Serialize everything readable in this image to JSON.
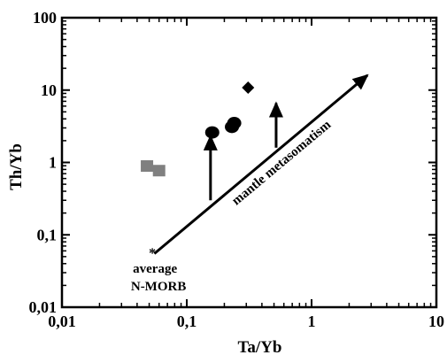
{
  "chart_data": {
    "type": "scatter",
    "xlabel": "Ta/Yb",
    "ylabel": "Th/Yb",
    "x_scale": "log",
    "y_scale": "log",
    "xlim": [
      0.01,
      10
    ],
    "ylim": [
      0.01,
      100
    ],
    "x_ticks": [
      0.01,
      0.1,
      1,
      10
    ],
    "x_tick_labels": [
      "0,01",
      "0,1",
      "1",
      "10"
    ],
    "y_ticks": [
      0.01,
      0.1,
      1,
      10,
      100
    ],
    "y_tick_labels": [
      "0,01",
      "0,1",
      "1",
      "10",
      "100"
    ],
    "grid": false,
    "series": [
      {
        "marker": "square",
        "color": "#808080",
        "points": [
          [
            0.048,
            0.88
          ],
          [
            0.06,
            0.76
          ]
        ]
      },
      {
        "marker": "circle",
        "color": "#000000",
        "points": [
          [
            0.16,
            2.6
          ],
          [
            0.23,
            3.1
          ],
          [
            0.24,
            3.5
          ]
        ]
      },
      {
        "marker": "diamond",
        "color": "#000000",
        "points": [
          [
            0.31,
            10.8
          ]
        ]
      }
    ],
    "reference_point": {
      "marker": "asterisk",
      "x": 0.053,
      "y": 0.057,
      "label_lines": [
        "average",
        "N-MORB"
      ]
    },
    "trend_arrow": {
      "from": [
        0.055,
        0.055
      ],
      "to": [
        2.8,
        16
      ],
      "label": "mantle metasomatism"
    },
    "vertical_arrows": [
      {
        "x": 0.155,
        "from": 0.3,
        "to": 2.3
      },
      {
        "x": 0.52,
        "from": 1.6,
        "to": 6.6
      }
    ]
  }
}
